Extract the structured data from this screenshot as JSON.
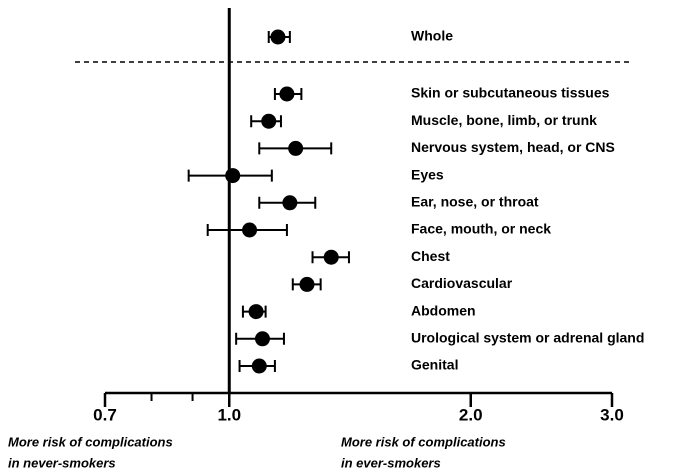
{
  "chart_data": {
    "type": "forest",
    "categories": [
      "Whole",
      "Skin or subcutaneous tissues",
      "Muscle, bone, limb, or trunk",
      "Nervous system, head, or CNS",
      "Eyes",
      "Ear, nose, or throat",
      "Face, mouth, or neck",
      "Chest",
      "Cardiovascular",
      "Abdomen",
      "Urological system or adrenal gland",
      "Genital"
    ],
    "values": [
      1.15,
      1.18,
      1.12,
      1.21,
      1.01,
      1.19,
      1.06,
      1.34,
      1.25,
      1.08,
      1.1,
      1.09
    ],
    "lower": [
      1.12,
      1.14,
      1.065,
      1.09,
      0.89,
      1.09,
      0.94,
      1.27,
      1.2,
      1.04,
      1.02,
      1.03
    ],
    "upper": [
      1.19,
      1.23,
      1.16,
      1.34,
      1.13,
      1.28,
      1.18,
      1.41,
      1.3,
      1.11,
      1.17,
      1.14
    ],
    "color": "#000000",
    "xscale": "log",
    "xlim": [
      0.7,
      3.0
    ],
    "xticks": [
      0.7,
      {
        "value": 1.0,
        "label": "1.0"
      },
      {
        "value": 2.0,
        "label": "2.0"
      },
      {
        "value": 3.0,
        "label": "3.0"
      }
    ],
    "xminorticks": [
      0.8,
      0.9
    ],
    "reference_line": 1,
    "left_note": [
      "More risk of complications",
      "in never-smokers"
    ],
    "right_note": [
      "More risk of complications",
      "in ever-smokers"
    ]
  }
}
